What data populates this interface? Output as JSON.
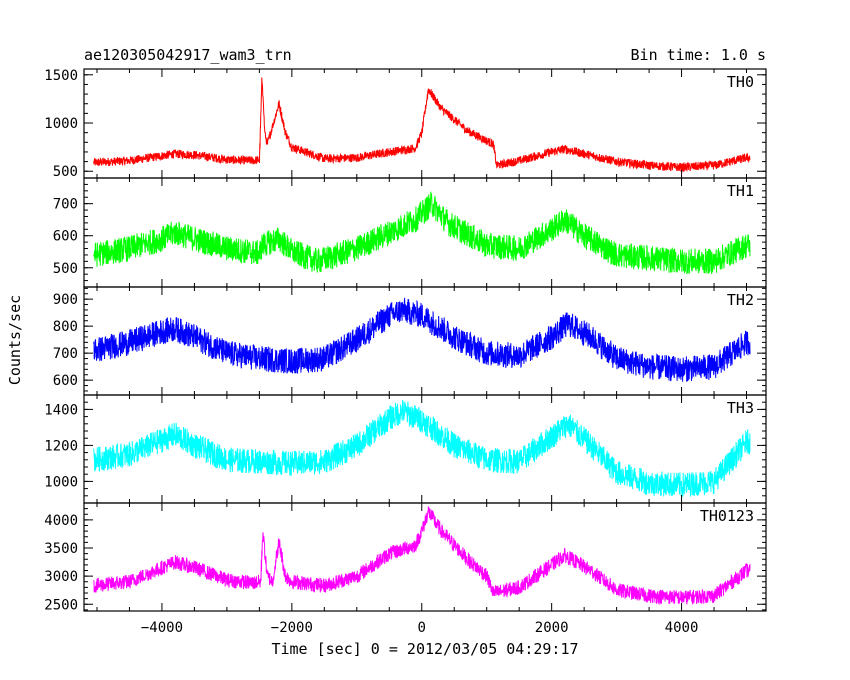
{
  "header": {
    "title": "ae120305042917_wam3_trn",
    "bin_time": "Bin time: 1.0 s"
  },
  "chart_data": {
    "type": "line",
    "xlabel": "Time [sec] 0 = 2012/03/05 04:29:17",
    "ylabel": "Counts/sec",
    "xlim": [
      -5200,
      5300
    ],
    "x_ticks": [
      -4000,
      -2000,
      0,
      2000,
      4000
    ],
    "x_tick_labels": [
      "−4000",
      "−2000",
      "0",
      "2000",
      "4000"
    ],
    "x_range_data": [
      -5050,
      5050
    ],
    "panels": [
      {
        "name": "TH0",
        "color": "#ff0000",
        "ylim": [
          430,
          1560
        ],
        "y_ticks": [
          500,
          1000,
          1500
        ],
        "y_tick_labels": [
          "500",
          "1000",
          "1500"
        ],
        "envelope": [
          [
            -5050,
            590
          ],
          [
            -4500,
            610
          ],
          [
            -4000,
            660
          ],
          [
            -3800,
            680
          ],
          [
            -3500,
            670
          ],
          [
            -3000,
            620
          ],
          [
            -2600,
            610
          ],
          [
            -2500,
            620
          ],
          [
            -2460,
            1500
          ],
          [
            -2420,
            900
          ],
          [
            -2380,
            780
          ],
          [
            -2200,
            1200
          ],
          [
            -2100,
            900
          ],
          [
            -2000,
            750
          ],
          [
            -1500,
            630
          ],
          [
            -1000,
            640
          ],
          [
            -500,
            700
          ],
          [
            -100,
            740
          ],
          [
            0,
            900
          ],
          [
            100,
            1350
          ],
          [
            300,
            1150
          ],
          [
            700,
            920
          ],
          [
            1100,
            780
          ],
          [
            1150,
            560
          ],
          [
            1500,
            610
          ],
          [
            2000,
            700
          ],
          [
            2200,
            730
          ],
          [
            2500,
            680
          ],
          [
            3000,
            600
          ],
          [
            3500,
            560
          ],
          [
            4000,
            540
          ],
          [
            4500,
            560
          ],
          [
            5000,
            640
          ]
        ],
        "noise": 45
      },
      {
        "name": "TH1",
        "color": "#00ff00",
        "ylim": [
          440,
          780
        ],
        "y_ticks": [
          500,
          600,
          700
        ],
        "y_tick_labels": [
          "500",
          "600",
          "700"
        ],
        "envelope": [
          [
            -5050,
            540
          ],
          [
            -4500,
            560
          ],
          [
            -4000,
            590
          ],
          [
            -3800,
            610
          ],
          [
            -3500,
            590
          ],
          [
            -3000,
            560
          ],
          [
            -2500,
            545
          ],
          [
            -2460,
            570
          ],
          [
            -2200,
            590
          ],
          [
            -2000,
            550
          ],
          [
            -1600,
            520
          ],
          [
            -1000,
            560
          ],
          [
            -500,
            610
          ],
          [
            -100,
            650
          ],
          [
            0,
            670
          ],
          [
            150,
            700
          ],
          [
            400,
            640
          ],
          [
            1000,
            570
          ],
          [
            1500,
            560
          ],
          [
            2000,
            620
          ],
          [
            2200,
            650
          ],
          [
            2500,
            600
          ],
          [
            3000,
            540
          ],
          [
            3500,
            530
          ],
          [
            4000,
            520
          ],
          [
            4500,
            520
          ],
          [
            5000,
            570
          ]
        ],
        "noise": 40
      },
      {
        "name": "TH2",
        "color": "#0000ff",
        "ylim": [
          545,
          945
        ],
        "y_ticks": [
          600,
          700,
          800,
          900
        ],
        "y_tick_labels": [
          "600",
          "700",
          "800",
          "900"
        ],
        "envelope": [
          [
            -5050,
            710
          ],
          [
            -4500,
            740
          ],
          [
            -4000,
            780
          ],
          [
            -3800,
            790
          ],
          [
            -3500,
            760
          ],
          [
            -3000,
            700
          ],
          [
            -2500,
            680
          ],
          [
            -2000,
            670
          ],
          [
            -1500,
            680
          ],
          [
            -1000,
            750
          ],
          [
            -500,
            840
          ],
          [
            -300,
            860
          ],
          [
            0,
            840
          ],
          [
            500,
            760
          ],
          [
            1000,
            700
          ],
          [
            1500,
            690
          ],
          [
            2000,
            760
          ],
          [
            2250,
            810
          ],
          [
            2600,
            760
          ],
          [
            3000,
            680
          ],
          [
            3500,
            650
          ],
          [
            4000,
            640
          ],
          [
            4500,
            650
          ],
          [
            5000,
            740
          ]
        ],
        "noise": 48
      },
      {
        "name": "TH3",
        "color": "#00ffff",
        "ylim": [
          880,
          1480
        ],
        "y_ticks": [
          1000,
          1200,
          1400
        ],
        "y_tick_labels": [
          "1000",
          "1200",
          "1400"
        ],
        "envelope": [
          [
            -5050,
            1120
          ],
          [
            -4500,
            1150
          ],
          [
            -4000,
            1230
          ],
          [
            -3800,
            1260
          ],
          [
            -3500,
            1200
          ],
          [
            -3000,
            1120
          ],
          [
            -2500,
            1110
          ],
          [
            -2000,
            1100
          ],
          [
            -1500,
            1110
          ],
          [
            -1000,
            1200
          ],
          [
            -500,
            1350
          ],
          [
            -300,
            1390
          ],
          [
            0,
            1340
          ],
          [
            500,
            1200
          ],
          [
            1000,
            1120
          ],
          [
            1500,
            1110
          ],
          [
            2000,
            1250
          ],
          [
            2250,
            1320
          ],
          [
            2600,
            1200
          ],
          [
            3000,
            1050
          ],
          [
            3500,
            990
          ],
          [
            4000,
            980
          ],
          [
            4500,
            1000
          ],
          [
            5000,
            1220
          ]
        ],
        "noise": 70
      },
      {
        "name": "TH0123",
        "color": "#ff00ff",
        "ylim": [
          2380,
          4300
        ],
        "y_ticks": [
          2500,
          3000,
          3500,
          4000
        ],
        "y_tick_labels": [
          "2500",
          "3000",
          "3500",
          "4000"
        ],
        "envelope": [
          [
            -5050,
            2830
          ],
          [
            -4500,
            2900
          ],
          [
            -4000,
            3150
          ],
          [
            -3800,
            3250
          ],
          [
            -3500,
            3150
          ],
          [
            -3000,
            2930
          ],
          [
            -2600,
            2880
          ],
          [
            -2480,
            2900
          ],
          [
            -2450,
            3800
          ],
          [
            -2380,
            3000
          ],
          [
            -2300,
            2900
          ],
          [
            -2200,
            3600
          ],
          [
            -2100,
            3000
          ],
          [
            -2000,
            2900
          ],
          [
            -1500,
            2830
          ],
          [
            -1000,
            3000
          ],
          [
            -500,
            3400
          ],
          [
            -100,
            3550
          ],
          [
            0,
            3800
          ],
          [
            100,
            4150
          ],
          [
            300,
            3800
          ],
          [
            700,
            3300
          ],
          [
            1000,
            3000
          ],
          [
            1100,
            2700
          ],
          [
            1500,
            2800
          ],
          [
            2000,
            3200
          ],
          [
            2200,
            3370
          ],
          [
            2600,
            3100
          ],
          [
            3000,
            2750
          ],
          [
            3500,
            2650
          ],
          [
            4000,
            2620
          ],
          [
            4500,
            2650
          ],
          [
            5000,
            3100
          ]
        ],
        "noise": 130
      }
    ]
  }
}
